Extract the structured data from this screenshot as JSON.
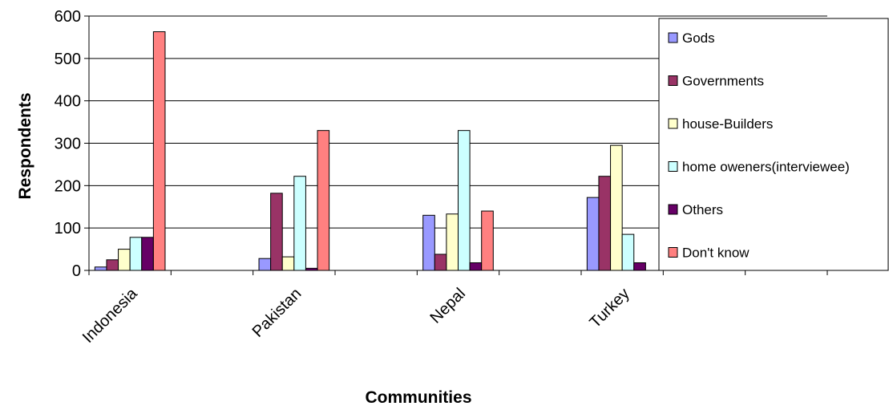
{
  "chart_data": {
    "type": "bar",
    "title": "",
    "xlabel": "Communities",
    "ylabel": "Respondents",
    "ylim": [
      0,
      600
    ],
    "yticks": [
      "0",
      "100",
      "200",
      "300",
      "400",
      "500",
      "600"
    ],
    "grid": true,
    "legend_position": "right",
    "categories": [
      "Indonesia",
      "Pakistan",
      "Nepal",
      "Turkey"
    ],
    "series": [
      {
        "name": "Gods",
        "color": "#9999ff",
        "values": [
          8,
          28,
          130,
          172
        ]
      },
      {
        "name": "Governments",
        "color": "#993366",
        "values": [
          25,
          182,
          38,
          222
        ]
      },
      {
        "name": "house-Builders",
        "color": "#ffffcc",
        "values": [
          50,
          32,
          133,
          295
        ]
      },
      {
        "name": "home oweners(interviewee)",
        "color": "#ccffff",
        "values": [
          78,
          222,
          330,
          85
        ]
      },
      {
        "name": "Others",
        "color": "#660066",
        "values": [
          78,
          5,
          18,
          18
        ]
      },
      {
        "name": "Don't know",
        "color": "#ff8080",
        "values": [
          563,
          330,
          140,
          0
        ]
      }
    ]
  }
}
